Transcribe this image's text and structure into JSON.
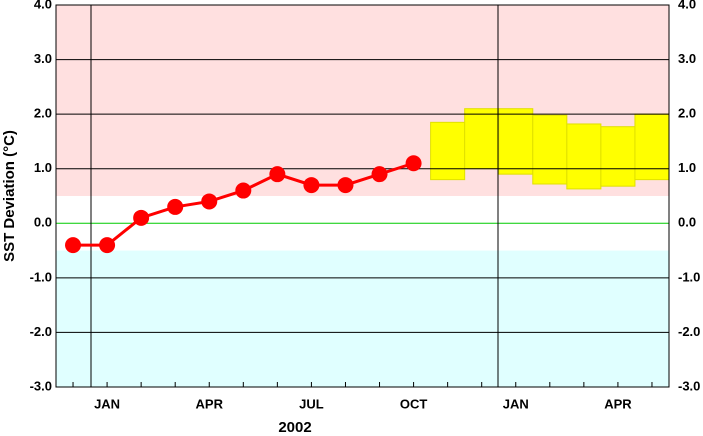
{
  "chart_data": {
    "type": "line",
    "x_label": "2002",
    "y_label": "SST Deviation (°C)",
    "categories": [
      null,
      "JAN",
      null,
      null,
      "APR",
      null,
      null,
      "JUL",
      null,
      null,
      "OCT",
      null,
      null,
      "JAN",
      null,
      null,
      "APR",
      null
    ],
    "series": [
      {
        "color": "#ff0000",
        "values": [
          -0.4,
          -0.4,
          0.1,
          0.3,
          0.4,
          0.6,
          0.9,
          0.7,
          0.7,
          0.9,
          1.1,
          null,
          null,
          null,
          null,
          null,
          null,
          null
        ]
      }
    ],
    "forecast": {
      "color": "#ffff00",
      "edge_color": "#e0e000",
      "low": [
        null,
        null,
        null,
        null,
        null,
        null,
        null,
        null,
        null,
        null,
        null,
        0.8,
        1.0,
        0.9,
        0.72,
        0.63,
        0.68,
        0.8
      ],
      "high": [
        null,
        null,
        null,
        null,
        null,
        null,
        null,
        null,
        null,
        null,
        null,
        1.85,
        2.1,
        2.1,
        1.98,
        1.82,
        1.77,
        2.0
      ]
    },
    "bands": [
      {
        "from": 0.5,
        "to": 4.0,
        "color": "#ffe0e0"
      },
      {
        "from": -3.0,
        "to": -0.5,
        "color": "#e0ffff"
      }
    ],
    "zero_line_color": "#00cc00",
    "ylim": [
      -3.0,
      4.0
    ],
    "yticks": [
      {
        "value": -3,
        "label": "-3.0"
      },
      {
        "value": -2,
        "label": "-2.0"
      },
      {
        "value": -1,
        "label": "-1.0"
      },
      {
        "value": 0,
        "label": "0.0"
      },
      {
        "value": 1,
        "label": "1.0"
      },
      {
        "value": 2,
        "label": "2.0"
      },
      {
        "value": 3,
        "label": "3.0"
      },
      {
        "value": 4,
        "label": "4.0"
      }
    ],
    "grid": true
  }
}
